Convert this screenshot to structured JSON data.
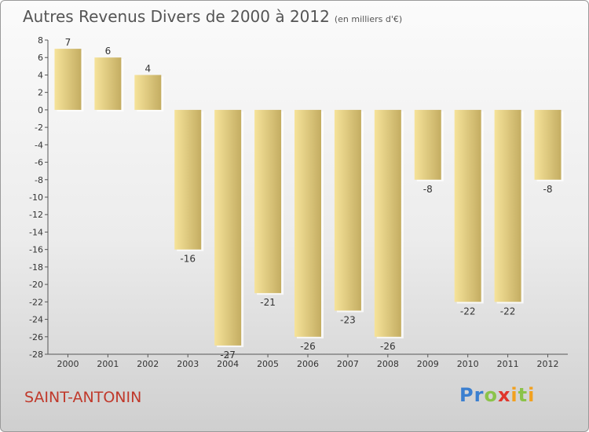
{
  "title": "Autres Revenus Divers de 2000 à 2012",
  "unit_note": "(en milliers d'€)",
  "commune": "SAINT-ANTONIN",
  "logo": {
    "letters": [
      {
        "ch": "P",
        "color": "#3a7fd0"
      },
      {
        "ch": "r",
        "color": "#3a7fd0"
      },
      {
        "ch": "o",
        "color": "#8bc34a"
      },
      {
        "ch": "x",
        "color": "#e0362b"
      },
      {
        "ch": "i",
        "color": "#f2a11f"
      },
      {
        "ch": "t",
        "color": "#8bc34a"
      },
      {
        "ch": "i",
        "color": "#f2a11f"
      }
    ]
  },
  "chart_data": {
    "type": "bar",
    "categories": [
      "2000",
      "2001",
      "2002",
      "2003",
      "2004",
      "2005",
      "2006",
      "2007",
      "2008",
      "2009",
      "2010",
      "2011",
      "2012"
    ],
    "values": [
      7,
      6,
      4,
      -16,
      -27,
      -21,
      -26,
      -23,
      -26,
      -8,
      -22,
      -22,
      -8
    ],
    "ylim": [
      -28,
      8
    ],
    "yticks": [
      8,
      6,
      4,
      2,
      0,
      -2,
      -4,
      -6,
      -8,
      -10,
      -12,
      -14,
      -16,
      -18,
      -20,
      -22,
      -24,
      -26,
      -28
    ],
    "grid": false,
    "bar_color_dark": "#c4ad62",
    "bar_color_light": "#f6e39a"
  }
}
